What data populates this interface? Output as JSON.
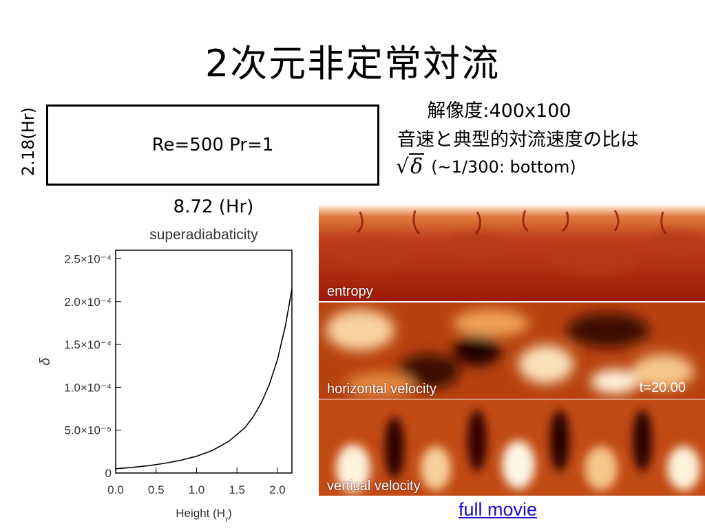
{
  "slide": {
    "title": "2次元非定常対流",
    "domain_box_label": "Re=500 Pr=1",
    "height_label": "2.18(Hr)",
    "width_label": "8.72 (Hr)",
    "info_line1": "解像度:400x100",
    "info_line2": "音速と典型的対流速度の比は",
    "info_sqrt_symbol": "δ",
    "info_line3": "(~1/300: bottom)",
    "link_text": "full  movie"
  },
  "panels": {
    "entropy_label": "entropy",
    "horizontal_label": "horizontal velocity",
    "time_label": "t=20.00",
    "vertical_label": "vertical velocity"
  },
  "chart_data": {
    "type": "line",
    "title": "superadiabaticity",
    "xlabel": "Height (Hr)",
    "xlabel_main": "Height (H",
    "xlabel_sub": "r",
    "xlabel_close": ")",
    "ylabel": "δ",
    "xlim": [
      0,
      2.18
    ],
    "ylim": [
      0,
      0.00026
    ],
    "xticks": [
      0.0,
      0.5,
      1.0,
      1.5,
      2.0
    ],
    "xtick_labels": [
      "0.0",
      "0.5",
      "1.0",
      "1.5",
      "2.0"
    ],
    "yticks": [
      0,
      5e-05,
      0.0001,
      0.00015,
      0.0002,
      0.00025
    ],
    "ytick_labels": [
      "0",
      "5.0×10⁻⁵",
      "1.0×10⁻⁴",
      "1.5×10⁻⁴",
      "2.0×10⁻⁴",
      "2.5×10⁻⁴"
    ],
    "series": [
      {
        "x": [
          0.0,
          0.2,
          0.4,
          0.6,
          0.8,
          1.0,
          1.2,
          1.4,
          1.6,
          1.7,
          1.8,
          1.9,
          2.0,
          2.1,
          2.18
        ],
        "y": [
          5e-06,
          6.5e-06,
          8.5e-06,
          1.12e-05,
          1.48e-05,
          1.95e-05,
          2.65e-05,
          3.7e-05,
          5.3e-05,
          6.55e-05,
          8.15e-05,
          0.000103,
          0.000132,
          0.000172,
          0.000215
        ]
      }
    ],
    "grid": false
  }
}
